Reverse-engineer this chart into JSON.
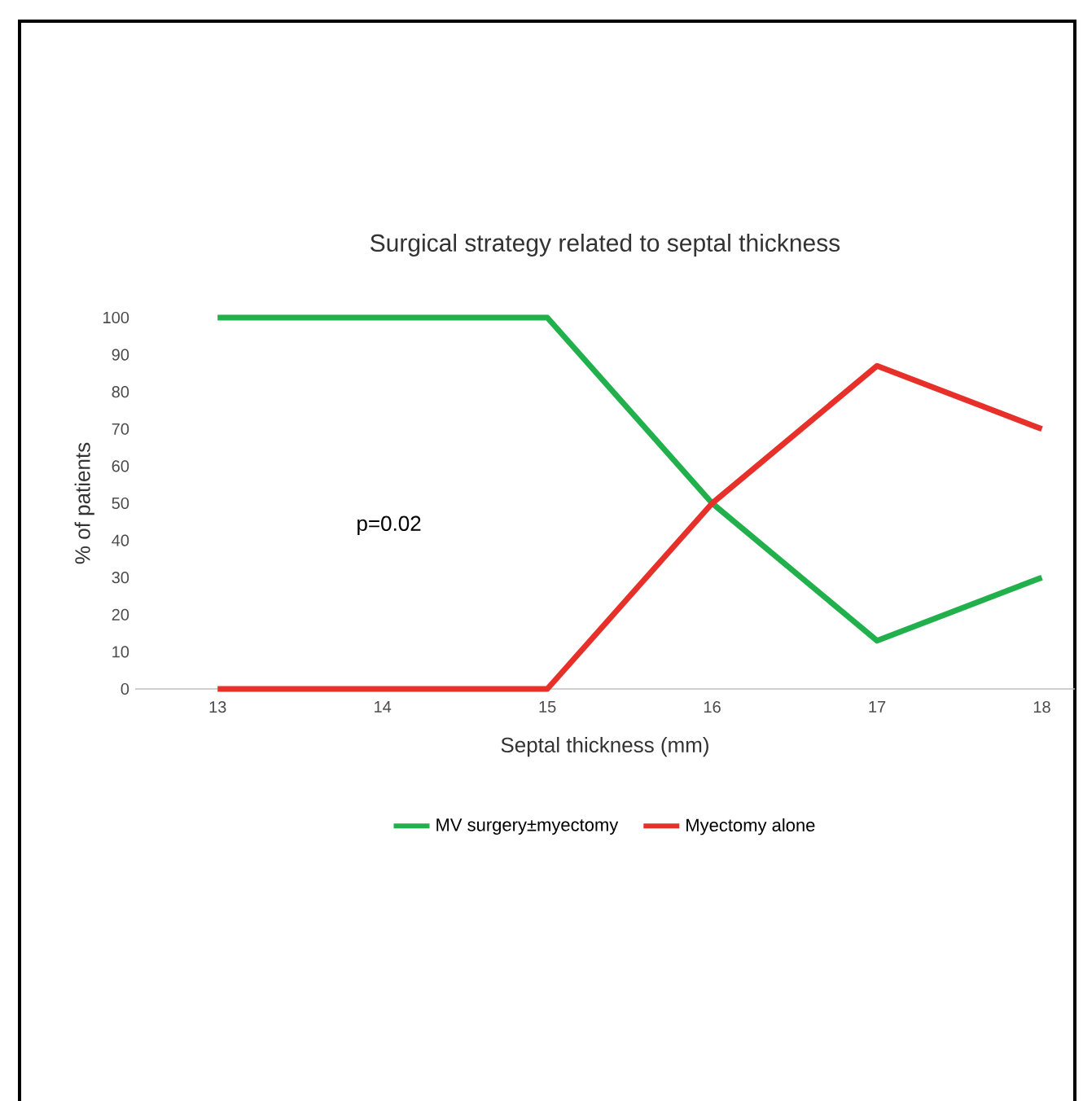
{
  "chart_data": {
    "type": "line",
    "title": "Surgical strategy related to septal thickness",
    "xlabel": "Septal thickness (mm)",
    "ylabel": "% of patients",
    "categories": [
      "13",
      "14",
      "15",
      "16",
      "17",
      "18"
    ],
    "series": [
      {
        "name": "MV surgery±myectomy",
        "color": "#22b04c",
        "values": [
          100,
          100,
          100,
          50,
          13,
          30
        ]
      },
      {
        "name": "Myectomy alone",
        "color": "#e8302a",
        "values": [
          0,
          0,
          0,
          50,
          87,
          70
        ]
      }
    ],
    "ylim": [
      0,
      100
    ],
    "yticks": [
      0,
      10,
      20,
      30,
      40,
      50,
      60,
      70,
      80,
      90,
      100
    ],
    "annotations": [
      "p=0.02"
    ],
    "legend": "bottom",
    "grid": false,
    "marker": "none",
    "line_style": "solid"
  }
}
